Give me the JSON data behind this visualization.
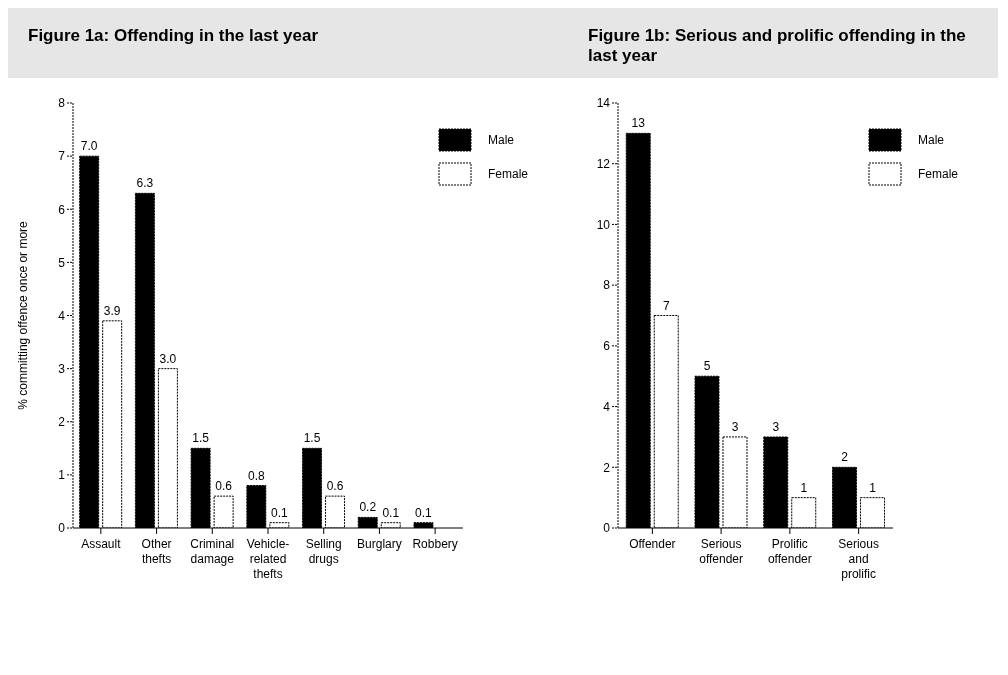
{
  "chart_data": [
    {
      "type": "bar",
      "title": "Figure 1a: Offending in the last year",
      "ylabel": "% committing offence once or more",
      "categories": [
        "Assault",
        "Other thefts",
        "Criminal damage",
        "Vehicle-related thefts",
        "Selling drugs",
        "Burglary",
        "Robbery"
      ],
      "series": [
        {
          "name": "Male",
          "color": "#000000",
          "values": [
            7.0,
            6.3,
            1.5,
            0.8,
            1.5,
            0.2,
            0.1
          ],
          "value_labels": [
            "7.0",
            "6.3",
            "1.5",
            "0.8",
            "1.5",
            "0.2",
            "0.1"
          ]
        },
        {
          "name": "Female",
          "color": "#ffffff",
          "values": [
            3.9,
            3.0,
            0.6,
            0.1,
            0.6,
            0.1,
            null
          ],
          "value_labels": [
            "3.9",
            "3.0",
            "0.6",
            "0.1",
            "0.6",
            "0.1",
            null
          ]
        }
      ],
      "ylim": [
        0,
        8
      ],
      "yticks": [
        0,
        1,
        2,
        3,
        4,
        5,
        6,
        7,
        8
      ],
      "legend": "top right",
      "grid": false
    },
    {
      "type": "bar",
      "title": "Figure 1b: Serious and prolific offending in the last year",
      "categories": [
        "Offender",
        "Serious offender",
        "Prolific offender",
        "Serious and prolific"
      ],
      "series": [
        {
          "name": "Male",
          "color": "#000000",
          "values": [
            13,
            5,
            3,
            2
          ]
        },
        {
          "name": "Female",
          "color": "#ffffff",
          "values": [
            7,
            3,
            1,
            1
          ]
        }
      ],
      "ylim": [
        0,
        14
      ],
      "yticks": [
        0,
        2,
        4,
        6,
        8,
        10,
        12,
        14
      ],
      "legend": "top right",
      "data_labels": true,
      "grid": false
    }
  ]
}
